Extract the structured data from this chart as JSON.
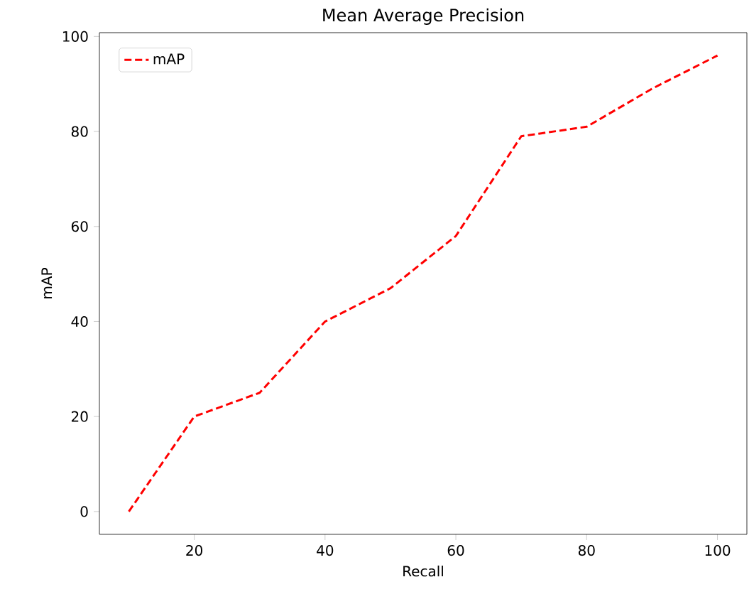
{
  "chart_data": {
    "type": "line",
    "title": "Mean Average Precision",
    "xlabel": "Recall",
    "ylabel": "mAP",
    "x": [
      10,
      20,
      30,
      40,
      50,
      60,
      70,
      80,
      90,
      100
    ],
    "series": [
      {
        "name": "mAP",
        "color": "#ff0000",
        "values": [
          0,
          20,
          25,
          40,
          47,
          58,
          79,
          81,
          89,
          96
        ]
      }
    ],
    "xlim": [
      5.5,
      104.5
    ],
    "ylim": [
      -4.8,
      100.8
    ],
    "xticks": [
      20,
      40,
      60,
      80,
      100
    ],
    "yticks": [
      0,
      20,
      40,
      60,
      80,
      100
    ],
    "line_style": "dashed",
    "legend": "top left",
    "grid": false
  }
}
